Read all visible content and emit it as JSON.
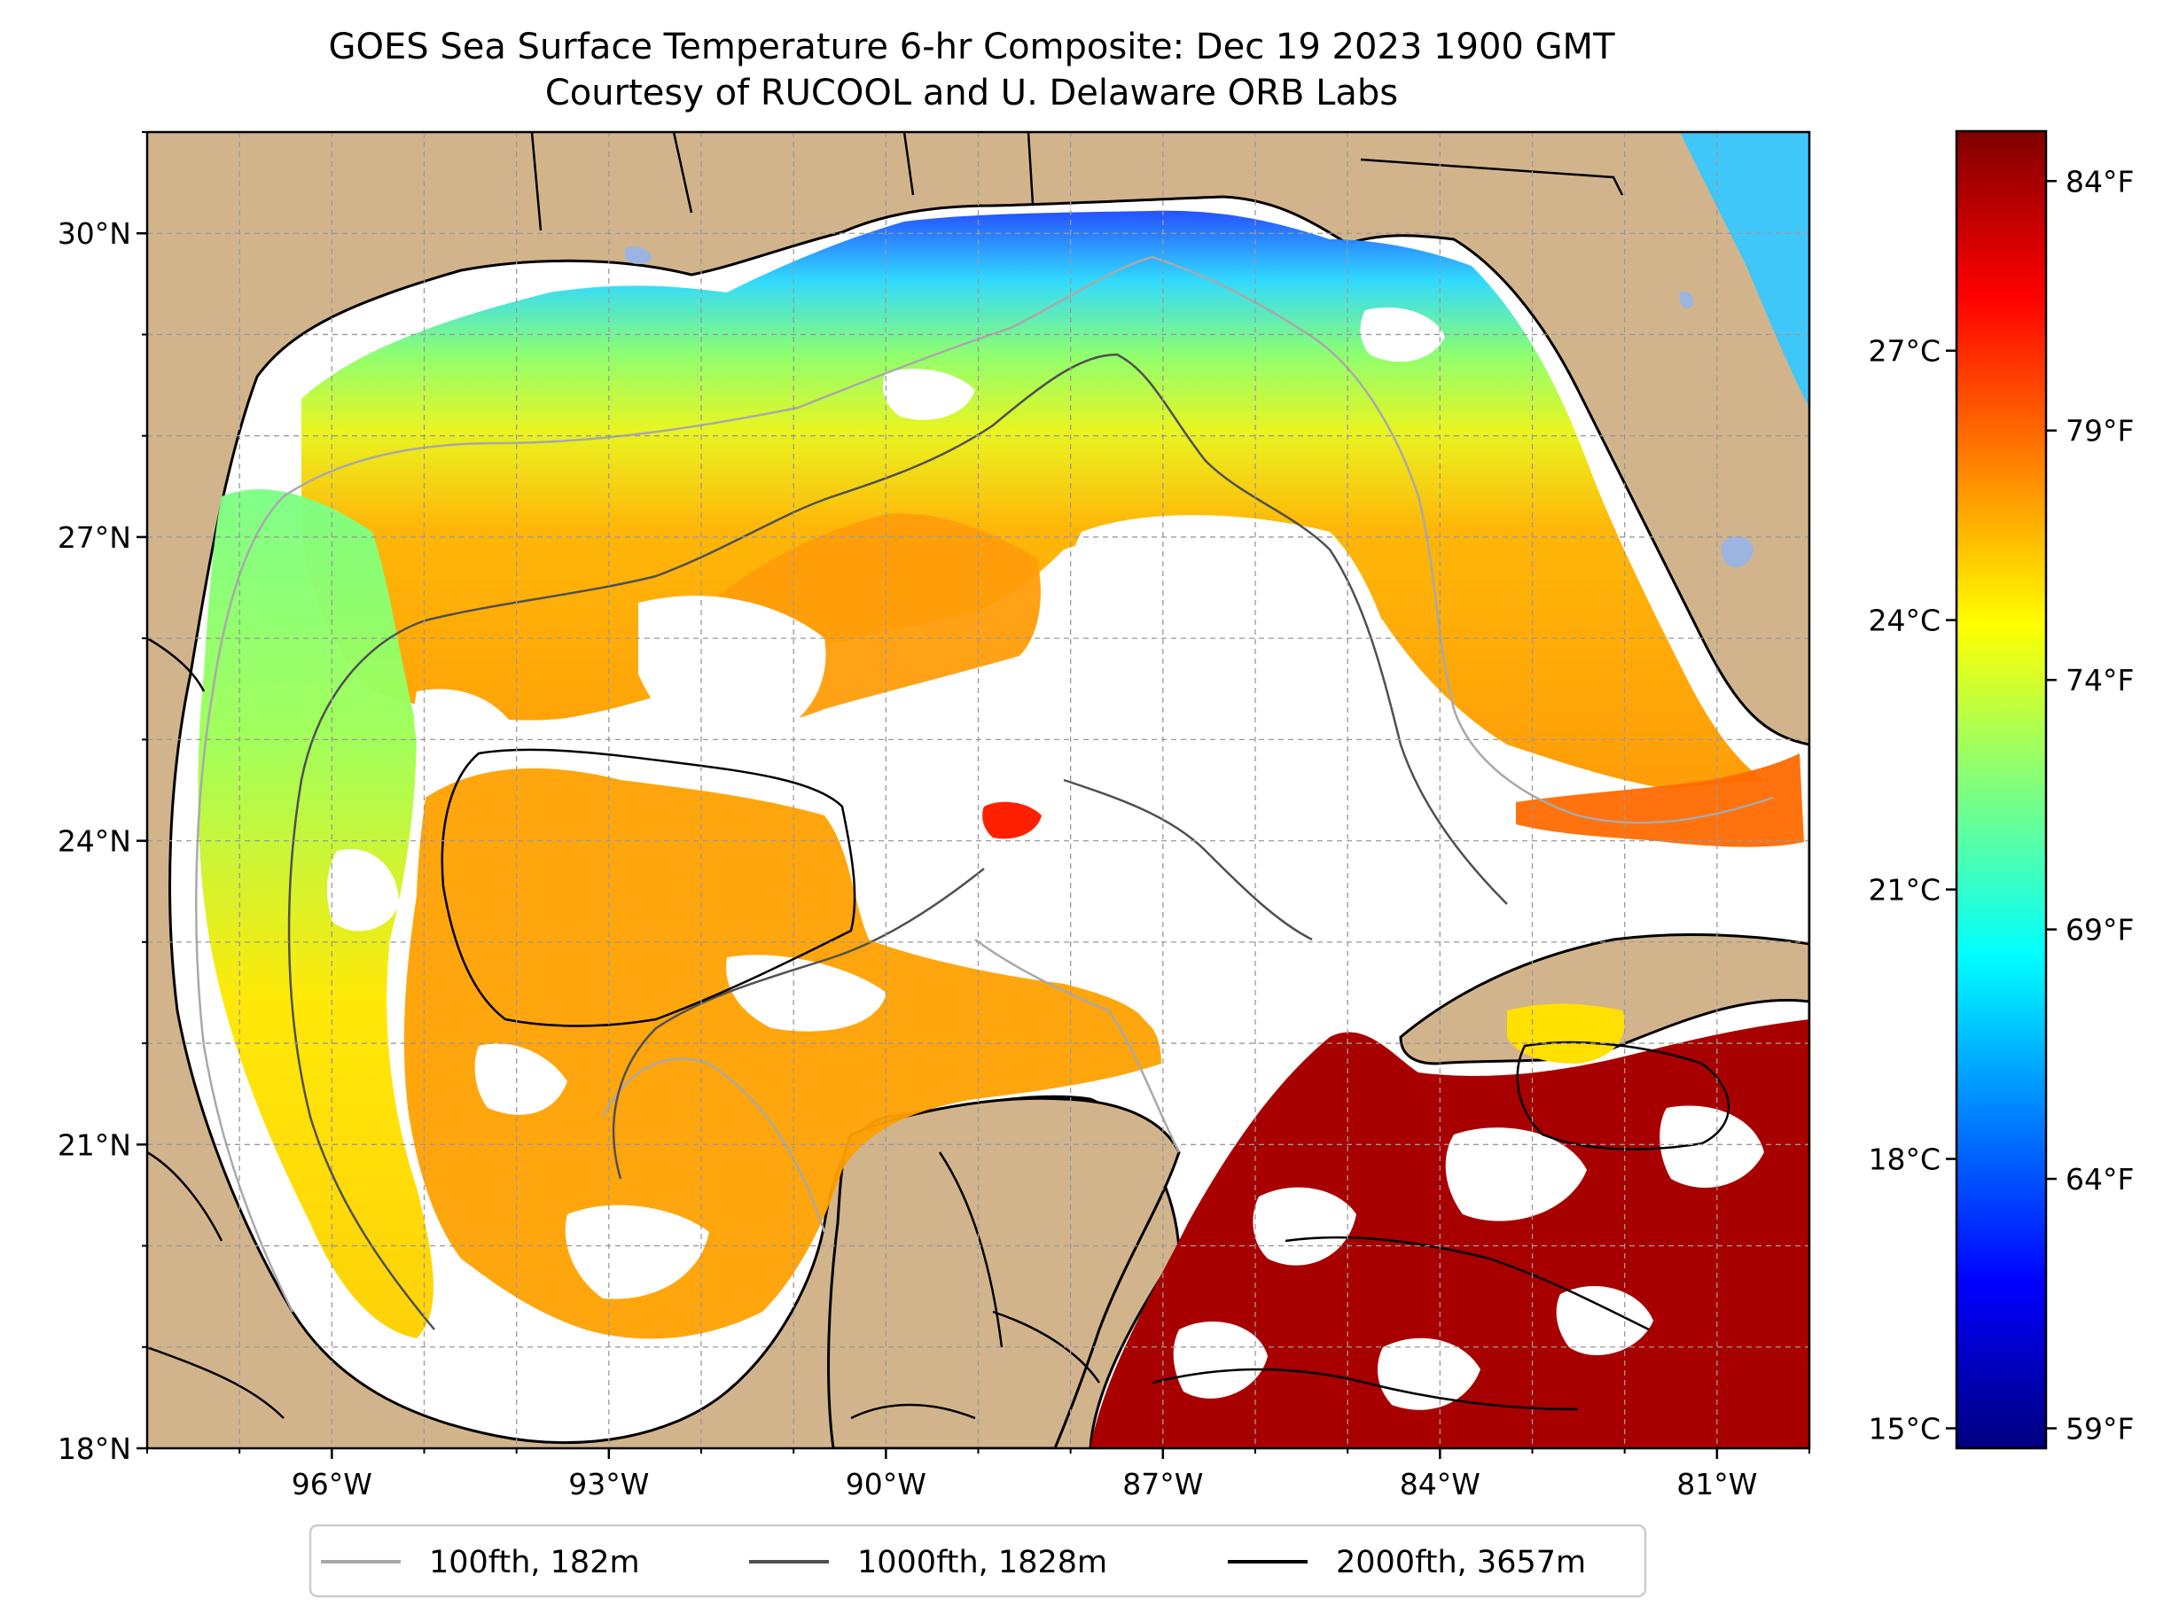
{
  "title": {
    "line1": "GOES Sea Surface Temperature 6-hr Composite: Dec 19 2023 1900 GMT",
    "line2": "Courtesy of RUCOOL and U. Delaware ORB Labs"
  },
  "map": {
    "lon_range": [
      -98,
      -80
    ],
    "lat_range": [
      18,
      31
    ],
    "land_color": "#d2b48c",
    "no_data_color": "#ffffff",
    "lake_color": "#9bb4e0",
    "gridlines": true,
    "lon_ticks": [
      {
        "value": -96,
        "label": "96°W"
      },
      {
        "value": -93,
        "label": "93°W"
      },
      {
        "value": -90,
        "label": "90°W"
      },
      {
        "value": -87,
        "label": "87°W"
      },
      {
        "value": -84,
        "label": "84°W"
      },
      {
        "value": -81,
        "label": "81°W"
      }
    ],
    "lat_ticks": [
      {
        "value": 30,
        "label": "30°N"
      },
      {
        "value": 27,
        "label": "27°N"
      },
      {
        "value": 24,
        "label": "24°N"
      },
      {
        "value": 21,
        "label": "21°N"
      },
      {
        "value": 18,
        "label": "18°N"
      }
    ]
  },
  "colorbar": {
    "colormap": "jet",
    "celsius_ticks": [
      {
        "value": 15,
        "label": "15°C"
      },
      {
        "value": 18,
        "label": "18°C"
      },
      {
        "value": 21,
        "label": "21°C"
      },
      {
        "value": 24,
        "label": "24°C"
      },
      {
        "value": 27,
        "label": "27°C"
      }
    ],
    "fahrenheit_ticks": [
      {
        "value": 59,
        "label": "59°F"
      },
      {
        "value": 64,
        "label": "64°F"
      },
      {
        "value": 69,
        "label": "69°F"
      },
      {
        "value": 74,
        "label": "74°F"
      },
      {
        "value": 79,
        "label": "79°F"
      },
      {
        "value": 84,
        "label": "84°F"
      }
    ]
  },
  "legend": {
    "placement": "bottom-center",
    "items": [
      {
        "label": "100fth, 182m",
        "color": "#a9a9a9"
      },
      {
        "label": "1000fth, 1828m",
        "color": "#505050"
      },
      {
        "label": "2000fth, 3657m",
        "color": "#000000"
      }
    ]
  }
}
